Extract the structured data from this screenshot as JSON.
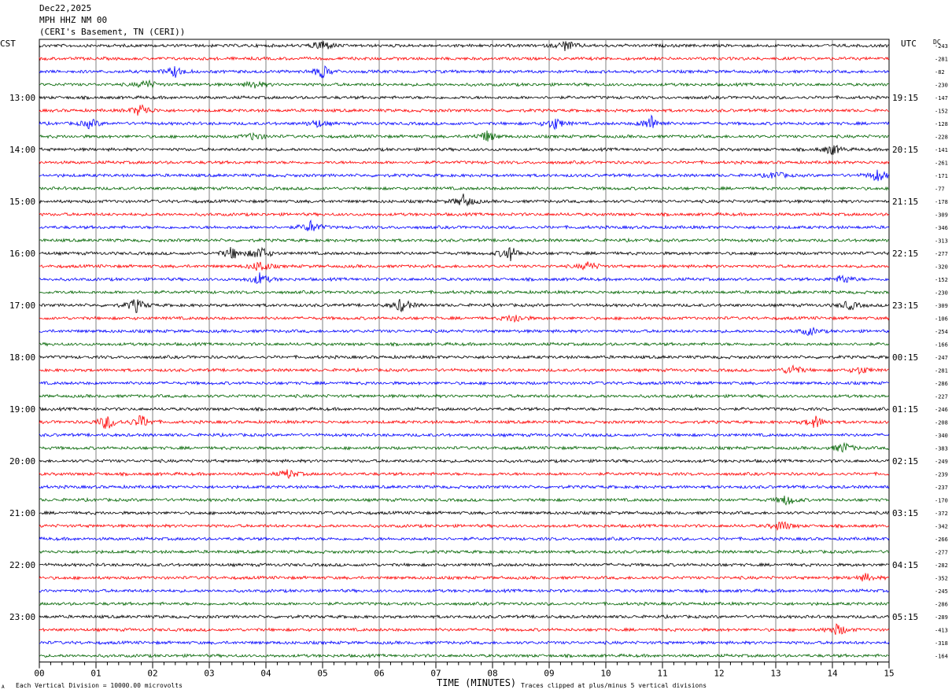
{
  "header": {
    "date": "Dec22,2025",
    "station": "MPH HHZ NM 00",
    "location": "(CERI's Basement, TN (CERI))"
  },
  "left_zone_label": "CST",
  "right_zone_label": "UTC",
  "dc_label": "DC",
  "footer": {
    "scale_note": "Each Vertical Division = 10000.00 microvolts",
    "clip_note": "Traces clipped at plus/minus 5 vertical divisions",
    "corner_mark": "A"
  },
  "colors": {
    "trace_cycle": [
      "#000000",
      "#ff0000",
      "#0000ff",
      "#006400"
    ],
    "grid": "#808080"
  },
  "chart_data": {
    "type": "line",
    "title": "MPH HHZ NM 00",
    "xlabel": "TIME (MINUTES)",
    "ylabel": "",
    "xlim": [
      0,
      15
    ],
    "x_ticks": [
      "00",
      "01",
      "02",
      "03",
      "04",
      "05",
      "06",
      "07",
      "08",
      "09",
      "10",
      "11",
      "12",
      "13",
      "14",
      "15"
    ],
    "traces_per_hour": 4,
    "left_time_labels": [
      {
        "trace": 4,
        "label": "13:00"
      },
      {
        "trace": 8,
        "label": "14:00"
      },
      {
        "trace": 12,
        "label": "15:00"
      },
      {
        "trace": 16,
        "label": "16:00"
      },
      {
        "trace": 20,
        "label": "17:00"
      },
      {
        "trace": 24,
        "label": "18:00"
      },
      {
        "trace": 28,
        "label": "19:00"
      },
      {
        "trace": 32,
        "label": "20:00"
      },
      {
        "trace": 36,
        "label": "21:00"
      },
      {
        "trace": 40,
        "label": "22:00"
      },
      {
        "trace": 44,
        "label": "23:00"
      }
    ],
    "right_time_labels": [
      {
        "trace": 4,
        "label": "19:15"
      },
      {
        "trace": 8,
        "label": "20:15"
      },
      {
        "trace": 12,
        "label": "21:15"
      },
      {
        "trace": 16,
        "label": "22:15"
      },
      {
        "trace": 20,
        "label": "23:15"
      },
      {
        "trace": 24,
        "label": "00:15"
      },
      {
        "trace": 28,
        "label": "01:15"
      },
      {
        "trace": 32,
        "label": "02:15"
      },
      {
        "trace": 36,
        "label": "03:15"
      },
      {
        "trace": 40,
        "label": "04:15"
      },
      {
        "trace": 44,
        "label": "05:15"
      }
    ],
    "dc_offsets": [
      "-243",
      "-281",
      "-82",
      "-230",
      "-147",
      "-152",
      "-128",
      "-228",
      "-141",
      "-261",
      "-171",
      "-77",
      "-178",
      "-309",
      "-346",
      "-313",
      "-277",
      "-320",
      "-152",
      "-230",
      "-309",
      "-106",
      "-254",
      "-166",
      "-247",
      "-281",
      "-286",
      "-227",
      "-246",
      "-208",
      "-340",
      "-383",
      "-249",
      "-239",
      "-237",
      "-170",
      "-372",
      "-342",
      "-266",
      "-277",
      "-282",
      "-352",
      "-245",
      "-286",
      "-289",
      "-413",
      "-318",
      "-164"
    ],
    "events": [
      {
        "trace": 0,
        "minute": 5.0,
        "amp": 8
      },
      {
        "trace": 0,
        "minute": 9.3,
        "amp": 7
      },
      {
        "trace": 2,
        "minute": 2.4,
        "amp": 7
      },
      {
        "trace": 2,
        "minute": 5.0,
        "amp": 8
      },
      {
        "trace": 3,
        "minute": 1.9,
        "amp": 6
      },
      {
        "trace": 3,
        "minute": 3.8,
        "amp": 5
      },
      {
        "trace": 5,
        "minute": 1.8,
        "amp": 9
      },
      {
        "trace": 6,
        "minute": 0.9,
        "amp": 6
      },
      {
        "trace": 6,
        "minute": 4.9,
        "amp": 5
      },
      {
        "trace": 6,
        "minute": 9.1,
        "amp": 8
      },
      {
        "trace": 6,
        "minute": 10.8,
        "amp": 10
      },
      {
        "trace": 7,
        "minute": 3.8,
        "amp": 5
      },
      {
        "trace": 7,
        "minute": 7.9,
        "amp": 7
      },
      {
        "trace": 8,
        "minute": 14.0,
        "amp": 7
      },
      {
        "trace": 10,
        "minute": 13.0,
        "amp": 5
      },
      {
        "trace": 10,
        "minute": 14.8,
        "amp": 8
      },
      {
        "trace": 12,
        "minute": 7.5,
        "amp": 9
      },
      {
        "trace": 14,
        "minute": 4.8,
        "amp": 8
      },
      {
        "trace": 16,
        "minute": 3.4,
        "amp": 8
      },
      {
        "trace": 16,
        "minute": 3.9,
        "amp": 9
      },
      {
        "trace": 16,
        "minute": 8.3,
        "amp": 10
      },
      {
        "trace": 17,
        "minute": 3.9,
        "amp": 8
      },
      {
        "trace": 17,
        "minute": 9.7,
        "amp": 6
      },
      {
        "trace": 18,
        "minute": 3.9,
        "amp": 8
      },
      {
        "trace": 18,
        "minute": 14.2,
        "amp": 6
      },
      {
        "trace": 20,
        "minute": 1.7,
        "amp": 9
      },
      {
        "trace": 20,
        "minute": 6.4,
        "amp": 9
      },
      {
        "trace": 20,
        "minute": 14.3,
        "amp": 6
      },
      {
        "trace": 21,
        "minute": 8.4,
        "amp": 6
      },
      {
        "trace": 22,
        "minute": 13.6,
        "amp": 5
      },
      {
        "trace": 25,
        "minute": 13.3,
        "amp": 7
      },
      {
        "trace": 25,
        "minute": 14.5,
        "amp": 5
      },
      {
        "trace": 29,
        "minute": 1.2,
        "amp": 10
      },
      {
        "trace": 29,
        "minute": 1.8,
        "amp": 9
      },
      {
        "trace": 29,
        "minute": 13.7,
        "amp": 8
      },
      {
        "trace": 31,
        "minute": 14.2,
        "amp": 7
      },
      {
        "trace": 33,
        "minute": 4.4,
        "amp": 6
      },
      {
        "trace": 35,
        "minute": 13.2,
        "amp": 7
      },
      {
        "trace": 37,
        "minute": 13.1,
        "amp": 7
      },
      {
        "trace": 41,
        "minute": 14.6,
        "amp": 5
      },
      {
        "trace": 45,
        "minute": 14.1,
        "amp": 8
      }
    ]
  }
}
